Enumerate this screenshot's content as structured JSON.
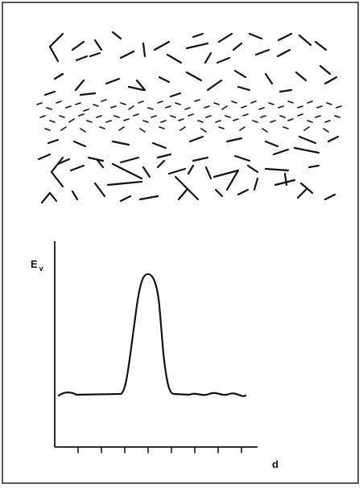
{
  "labels": {
    "y_axis": "E",
    "y_axis_subscript": "v",
    "x_axis": "d"
  }
}
